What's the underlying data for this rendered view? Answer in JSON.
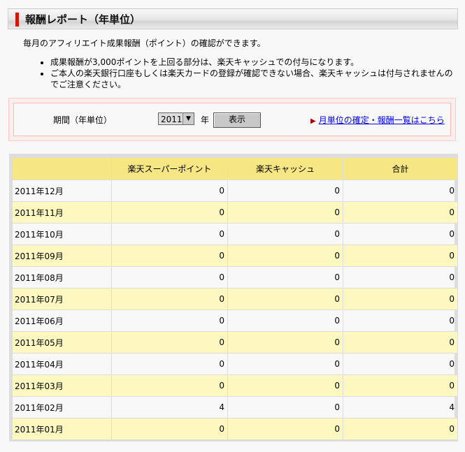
{
  "title": "報酬レポート（年単位）",
  "description": "毎月のアフィリエイト成果報酬（ポイント）の確認ができます。",
  "notes": [
    "成果報酬が3,000ポイントを上回る部分は、楽天キャッシュでの付与になります。",
    "ご本人の楽天銀行口座もしくは楽天カードの登録が確認できない場合、楽天キャッシュは付与されませんのでご注意ください。"
  ],
  "filter": {
    "label": "期間（年単位）",
    "year_value": "2011",
    "year_suffix": "年",
    "show_button": "表示",
    "monthly_link": "月単位の確定・報酬一覧はこちら"
  },
  "table": {
    "headers": [
      "",
      "楽天スーパーポイント",
      "楽天キャッシュ",
      "合計"
    ],
    "rows": [
      [
        "2011年12月",
        "0",
        "0",
        "0"
      ],
      [
        "2011年11月",
        "0",
        "0",
        "0"
      ],
      [
        "2011年10月",
        "0",
        "0",
        "0"
      ],
      [
        "2011年09月",
        "0",
        "0",
        "0"
      ],
      [
        "2011年08月",
        "0",
        "0",
        "0"
      ],
      [
        "2011年07月",
        "0",
        "0",
        "0"
      ],
      [
        "2011年06月",
        "0",
        "0",
        "0"
      ],
      [
        "2011年05月",
        "0",
        "0",
        "0"
      ],
      [
        "2011年04月",
        "0",
        "0",
        "0"
      ],
      [
        "2011年03月",
        "0",
        "0",
        "0"
      ],
      [
        "2011年02月",
        "4",
        "0",
        "4"
      ],
      [
        "2011年01月",
        "0",
        "0",
        "0"
      ]
    ]
  },
  "colors": {
    "accent": "#d0180a",
    "header_bg": "#f6e684",
    "alt_row": "#fdf8c0",
    "link": "#0000ee"
  }
}
